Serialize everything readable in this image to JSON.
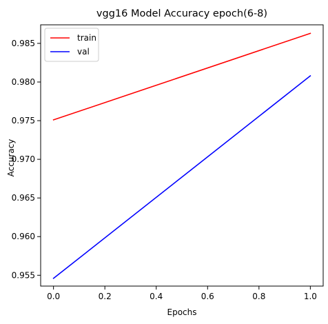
{
  "chart_data": {
    "type": "line",
    "title": "vgg16 Model Accuracy epoch(6-8)",
    "xlabel": "Epochs",
    "ylabel": "Accuracy",
    "x": [
      0.0,
      1.0
    ],
    "xlim": [
      -0.05,
      1.05
    ],
    "ylim": [
      0.9536,
      0.9874
    ],
    "xticks": [
      0.0,
      0.2,
      0.4,
      0.6,
      0.8,
      1.0
    ],
    "xtick_labels": [
      "0.0",
      "0.2",
      "0.4",
      "0.6",
      "0.8",
      "1.0"
    ],
    "yticks": [
      0.955,
      0.96,
      0.965,
      0.97,
      0.975,
      0.98,
      0.985
    ],
    "ytick_labels": [
      "0.955",
      "0.960",
      "0.965",
      "0.970",
      "0.975",
      "0.980",
      "0.985"
    ],
    "grid": false,
    "legend_position": "top-left",
    "series": [
      {
        "name": "train",
        "color": "#ff0000",
        "values": [
          0.9751,
          0.9863
        ]
      },
      {
        "name": "val",
        "color": "#0000ff",
        "values": [
          0.9546,
          0.9808
        ]
      }
    ]
  }
}
